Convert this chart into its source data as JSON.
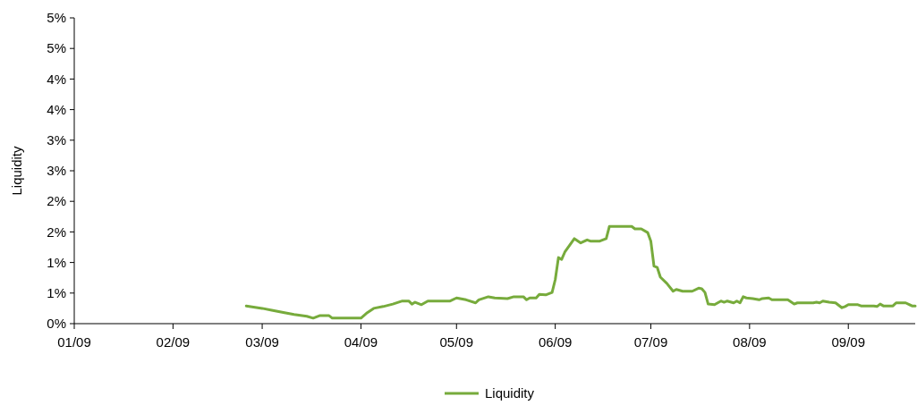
{
  "chart_data": {
    "type": "line",
    "ylabel": "Liquidity",
    "legend": "bottom",
    "grid": false,
    "marker": "none",
    "line_style": "solid",
    "xlim": [
      "2009-01-01",
      "2009-09-22"
    ],
    "xticks": [
      {
        "value": "2009-01-01",
        "label": "01/09"
      },
      {
        "value": "2009-02-01",
        "label": "02/09"
      },
      {
        "value": "2009-03-01",
        "label": "03/09"
      },
      {
        "value": "2009-04-01",
        "label": "04/09"
      },
      {
        "value": "2009-05-01",
        "label": "05/09"
      },
      {
        "value": "2009-06-01",
        "label": "06/09"
      },
      {
        "value": "2009-07-01",
        "label": "07/09"
      },
      {
        "value": "2009-08-01",
        "label": "08/09"
      },
      {
        "value": "2009-09-01",
        "label": "09/09"
      }
    ],
    "ylim": [
      0,
      5
    ],
    "yticks": [
      {
        "value": 0,
        "label": "0%"
      },
      {
        "value": 0.5,
        "label": "1%"
      },
      {
        "value": 1,
        "label": "1%"
      },
      {
        "value": 1.5,
        "label": "2%"
      },
      {
        "value": 2,
        "label": "2%"
      },
      {
        "value": 2.5,
        "label": "3%"
      },
      {
        "value": 3,
        "label": "3%"
      },
      {
        "value": 3.5,
        "label": "4%"
      },
      {
        "value": 4,
        "label": "4%"
      },
      {
        "value": 4.5,
        "label": "5%"
      },
      {
        "value": 5,
        "label": "5%"
      }
    ],
    "x": [
      "2009-02-24",
      "2009-03-01",
      "2009-03-04",
      "2009-03-08",
      "2009-03-11",
      "2009-03-15",
      "2009-03-17",
      "2009-03-19",
      "2009-03-22",
      "2009-03-23",
      "2009-04-01",
      "2009-04-03",
      "2009-04-05",
      "2009-04-08",
      "2009-04-11",
      "2009-04-14",
      "2009-04-16",
      "2009-04-17",
      "2009-04-18",
      "2009-04-20",
      "2009-04-22",
      "2009-04-29",
      "2009-05-01",
      "2009-05-04",
      "2009-05-07",
      "2009-05-08",
      "2009-05-11",
      "2009-05-13",
      "2009-05-17",
      "2009-05-19",
      "2009-05-22",
      "2009-05-23",
      "2009-05-24",
      "2009-05-26",
      "2009-05-27",
      "2009-05-29",
      "2009-05-31",
      "2009-06-01",
      "2009-06-02",
      "2009-06-03",
      "2009-06-04",
      "2009-06-07",
      "2009-06-09",
      "2009-06-11",
      "2009-06-12",
      "2009-06-15",
      "2009-06-17",
      "2009-06-18",
      "2009-06-25",
      "2009-06-26",
      "2009-06-28",
      "2009-06-30",
      "2009-07-01",
      "2009-07-02",
      "2009-07-03",
      "2009-07-04",
      "2009-07-06",
      "2009-07-08",
      "2009-07-09",
      "2009-07-11",
      "2009-07-14",
      "2009-07-16",
      "2009-07-17",
      "2009-07-18",
      "2009-07-19",
      "2009-07-21",
      "2009-07-23",
      "2009-07-24",
      "2009-07-25",
      "2009-07-27",
      "2009-07-28",
      "2009-07-29",
      "2009-07-30",
      "2009-07-31",
      "2009-08-02",
      "2009-08-04",
      "2009-08-05",
      "2009-08-07",
      "2009-08-08",
      "2009-08-12",
      "2009-08-13",
      "2009-08-15",
      "2009-08-16",
      "2009-08-21",
      "2009-08-22",
      "2009-08-23",
      "2009-08-24",
      "2009-08-26",
      "2009-08-28",
      "2009-08-30",
      "2009-08-31",
      "2009-09-01",
      "2009-09-04",
      "2009-09-05",
      "2009-09-09",
      "2009-09-10",
      "2009-09-11",
      "2009-09-12",
      "2009-09-15",
      "2009-09-16",
      "2009-09-19",
      "2009-09-21",
      "2009-09-22"
    ],
    "series": [
      {
        "name": "Liquidity",
        "color": "#77ab3c",
        "values": [
          0.29,
          0.25,
          0.22,
          0.18,
          0.15,
          0.12,
          0.09,
          0.13,
          0.13,
          0.09,
          0.09,
          0.18,
          0.25,
          0.28,
          0.32,
          0.37,
          0.37,
          0.32,
          0.35,
          0.31,
          0.37,
          0.37,
          0.42,
          0.39,
          0.34,
          0.39,
          0.44,
          0.42,
          0.41,
          0.44,
          0.44,
          0.39,
          0.42,
          0.42,
          0.48,
          0.47,
          0.51,
          0.72,
          1.08,
          1.05,
          1.17,
          1.39,
          1.32,
          1.37,
          1.35,
          1.35,
          1.39,
          1.59,
          1.59,
          1.55,
          1.55,
          1.49,
          1.35,
          0.94,
          0.92,
          0.76,
          0.66,
          0.53,
          0.56,
          0.53,
          0.53,
          0.58,
          0.57,
          0.51,
          0.32,
          0.31,
          0.37,
          0.35,
          0.37,
          0.34,
          0.37,
          0.34,
          0.44,
          0.42,
          0.41,
          0.39,
          0.41,
          0.42,
          0.39,
          0.39,
          0.39,
          0.32,
          0.34,
          0.34,
          0.35,
          0.34,
          0.37,
          0.35,
          0.34,
          0.26,
          0.28,
          0.31,
          0.31,
          0.29,
          0.29,
          0.28,
          0.32,
          0.29,
          0.29,
          0.34,
          0.34,
          0.29,
          0.29
        ]
      }
    ]
  }
}
